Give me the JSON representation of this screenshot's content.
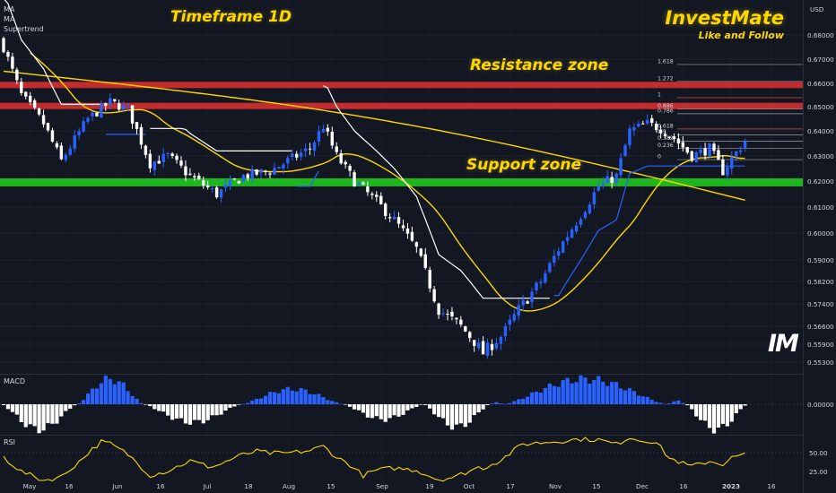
{
  "currency": "USD",
  "title": "Timeframe 1D",
  "brand": {
    "name": "InvestMate",
    "tagline": "Like and Follow",
    "logo_text": "IM"
  },
  "indicators": [
    "MA",
    "MA",
    "Supertrend"
  ],
  "annotations": {
    "resistance": "Resistance zone",
    "support": "Support zone"
  },
  "colors": {
    "background": "#131722",
    "up_candle": "#2962ff",
    "down_candle": "#ffffff",
    "ma": "#ffd700",
    "supertrend_down": "#ffffff",
    "supertrend_up": "#2962ff",
    "resistance": "#d32f2f",
    "support": "#1fbf1f",
    "rsi": "#ffd700"
  },
  "chart_data": [
    {
      "type": "candlestick",
      "y_ticks": [
        "0.68000",
        "0.67000",
        "0.66000",
        "0.65000",
        "0.64000",
        "0.63000",
        "0.62000",
        "0.61000",
        "0.60000",
        "0.59000",
        "0.58200",
        "0.57400",
        "0.56600",
        "0.55900",
        "0.55300"
      ],
      "x_ticks": [
        "May",
        "16",
        "Jun",
        "16",
        "Jul",
        "18",
        "Aug",
        "15",
        "Sep",
        "19",
        "Oct",
        "17",
        "Nov",
        "15",
        "Dec",
        "16",
        "2023",
        "16"
      ],
      "zones": {
        "resistance": [
          0.6595,
          0.6505
        ],
        "support": [
          0.6195
        ]
      },
      "fibonacci": {
        "levels": [
          "1.618",
          "1.272",
          "1",
          "0.886",
          "0.786",
          "0.618",
          "0.5",
          "0.382",
          "0.236",
          "0"
        ]
      }
    },
    {
      "type": "bar",
      "name": "MACD",
      "y_ticks": [
        "0.00000"
      ]
    },
    {
      "type": "line",
      "name": "RSI",
      "y_ticks": [
        "50.00",
        "25.00"
      ]
    }
  ]
}
